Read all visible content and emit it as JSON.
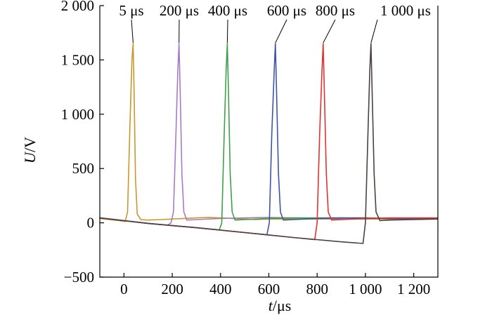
{
  "chart_data": {
    "type": "line",
    "title": "",
    "xlabel_var": "t",
    "xlabel_unit": "/μs",
    "ylabel_var": "U",
    "ylabel_unit": "/V",
    "xlim": [
      -100,
      1300
    ],
    "ylim": [
      -500,
      2000
    ],
    "grid": false,
    "legend": "none",
    "x_ticks": [
      0,
      200,
      400,
      600,
      800,
      1000,
      1200
    ],
    "x_tick_labels": [
      "0",
      "200",
      "400",
      "600",
      "800",
      "1 000",
      "1 200"
    ],
    "y_ticks": [
      -500,
      0,
      500,
      1000,
      1500,
      2000
    ],
    "y_tick_labels": [
      "−500",
      "0",
      "500",
      "1 000",
      "1 500",
      "2 000"
    ],
    "series": [
      {
        "name": "5 μs",
        "color": "#c8982c",
        "x": [
          -100,
          -20,
          5,
          15,
          25,
          33,
          38,
          42,
          48,
          55,
          70,
          100,
          150,
          200,
          250,
          300,
          350,
          400,
          450,
          500,
          550,
          600,
          650,
          700,
          800,
          900,
          1000,
          1100,
          1200,
          1300
        ],
        "y": [
          40,
          20,
          12,
          100,
          900,
          1500,
          1650,
          1200,
          400,
          80,
          30,
          25,
          30,
          35,
          40,
          45,
          50,
          45,
          40,
          35,
          30,
          35,
          35,
          35,
          35,
          35,
          35,
          35,
          35,
          35
        ]
      },
      {
        "name": "200 μs",
        "color": "#a77bc4",
        "x": [
          -100,
          0,
          100,
          180,
          195,
          205,
          215,
          223,
          228,
          233,
          240,
          248,
          260,
          300,
          400,
          500,
          600,
          700,
          800,
          900,
          1000,
          1100,
          1200,
          1300
        ],
        "y": [
          45,
          20,
          -5,
          -22,
          0,
          100,
          800,
          1400,
          1650,
          1200,
          450,
          100,
          25,
          30,
          40,
          45,
          50,
          45,
          40,
          40,
          40,
          40,
          40,
          40
        ]
      },
      {
        "name": "400 μs",
        "color": "#3fa04a",
        "x": [
          -100,
          100,
          300,
          395,
          405,
          415,
          423,
          428,
          433,
          440,
          448,
          460,
          500,
          600,
          700,
          800,
          900,
          1000,
          1100,
          1200,
          1300
        ],
        "y": [
          45,
          -5,
          -45,
          -65,
          0,
          800,
          1400,
          1650,
          1200,
          450,
          100,
          25,
          30,
          40,
          45,
          45,
          45,
          40,
          40,
          40,
          40
        ]
      },
      {
        "name": "600 μs",
        "color": "#3f54a8",
        "x": [
          -100,
          100,
          300,
          500,
          592,
          602,
          612,
          622,
          627,
          632,
          640,
          648,
          660,
          700,
          800,
          900,
          1000,
          1100,
          1200,
          1300
        ],
        "y": [
          45,
          -5,
          -45,
          -90,
          -110,
          0,
          800,
          1400,
          1650,
          1200,
          450,
          100,
          25,
          30,
          40,
          45,
          45,
          40,
          40,
          40
        ]
      },
      {
        "name": "800 μs",
        "color": "#e0342f",
        "x": [
          -100,
          100,
          300,
          500,
          700,
          790,
          800,
          810,
          820,
          825,
          830,
          838,
          846,
          860,
          900,
          1000,
          1100,
          1200,
          1300
        ],
        "y": [
          45,
          -5,
          -45,
          -90,
          -135,
          -155,
          0,
          800,
          1400,
          1650,
          1200,
          450,
          100,
          25,
          30,
          40,
          45,
          45,
          45
        ]
      },
      {
        "name": "1 000 μs",
        "color": "#4a4340",
        "x": [
          -100,
          100,
          300,
          500,
          700,
          900,
          990,
          1000,
          1010,
          1018,
          1023,
          1028,
          1036,
          1044,
          1060,
          1100,
          1200,
          1300
        ],
        "y": [
          45,
          -5,
          -45,
          -90,
          -135,
          -175,
          -190,
          0,
          800,
          1400,
          1650,
          1200,
          450,
          100,
          20,
          25,
          30,
          35
        ]
      }
    ]
  }
}
